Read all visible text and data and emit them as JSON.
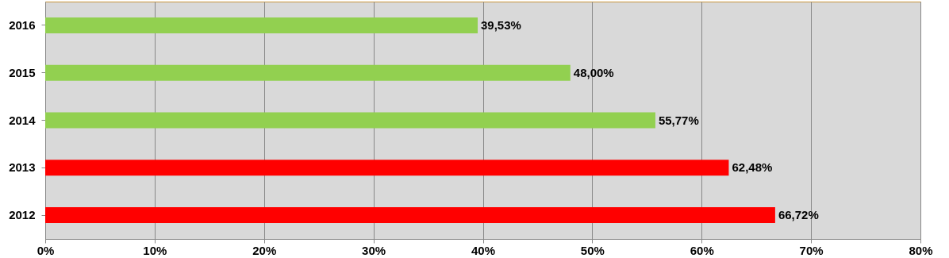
{
  "chart_data": {
    "type": "bar",
    "orientation": "horizontal",
    "categories": [
      "2016",
      "2015",
      "2014",
      "2013",
      "2012"
    ],
    "values": [
      39.53,
      48.0,
      55.77,
      62.48,
      66.72
    ],
    "colors": [
      "#92d050",
      "#92d050",
      "#92d050",
      "#ff0000",
      "#ff0000"
    ],
    "value_labels": [
      "39,53%",
      "48,00%",
      "55,77%",
      "62,48%",
      "66,72%"
    ],
    "xlim": [
      0,
      80
    ],
    "xticks": [
      {
        "value": 0,
        "label": "0%"
      },
      {
        "value": 10,
        "label": "10%"
      },
      {
        "value": 20,
        "label": "20%"
      },
      {
        "value": 30,
        "label": "30%"
      },
      {
        "value": 40,
        "label": "40%"
      },
      {
        "value": 50,
        "label": "50%"
      },
      {
        "value": 60,
        "label": "60%"
      },
      {
        "value": 70,
        "label": "70%"
      },
      {
        "value": 80,
        "label": "80%"
      }
    ],
    "grid": "x"
  }
}
